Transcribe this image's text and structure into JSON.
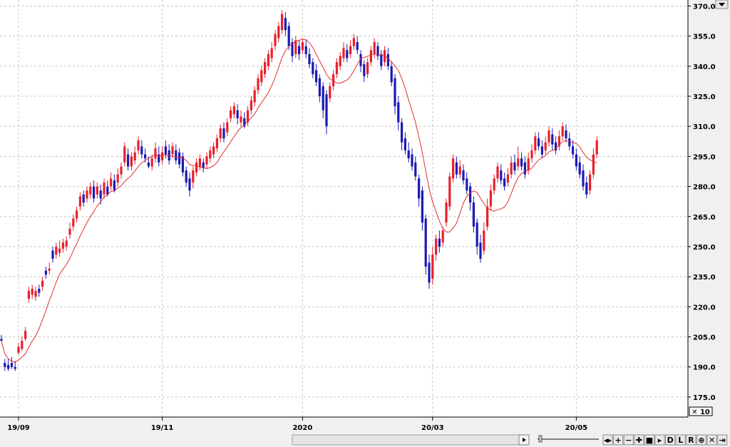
{
  "chart_data": {
    "type": "candlestick",
    "scale_label": "✕ 10",
    "y_ticks": [
      175.0,
      190.0,
      205.0,
      220.0,
      235.0,
      250.0,
      265.0,
      280.0,
      295.0,
      310.0,
      325.0,
      340.0,
      355.0,
      370.0
    ],
    "y_tick_labels": [
      "175.0",
      "190.0",
      "205.0",
      "220.0",
      "235.0",
      "250.0",
      "265.0",
      "280.0",
      "295.0",
      "310.0",
      "325.0",
      "340.0",
      "355.0",
      "370.0"
    ],
    "ylim": [
      165,
      373
    ],
    "x_labels": [
      {
        "label": "19/09",
        "index": 5
      },
      {
        "label": "19/11",
        "index": 47
      },
      {
        "label": "2020",
        "index": 88
      },
      {
        "label": "20/03",
        "index": 126
      },
      {
        "label": "20/05",
        "index": 168
      }
    ],
    "x_count": 176,
    "colors": {
      "up": "#e8202a",
      "down": "#1a1ab4",
      "ma": "#e03030",
      "grid": "#c8c8c8"
    },
    "candles": [
      [
        204,
        203,
        206,
        203
      ],
      [
        192,
        190,
        194,
        188
      ],
      [
        191,
        189,
        194,
        188
      ],
      [
        192,
        190,
        195,
        189
      ],
      [
        190,
        189,
        193,
        188
      ],
      [
        197,
        200,
        202,
        196
      ],
      [
        199,
        203,
        205,
        198
      ],
      [
        204,
        208,
        210,
        203
      ],
      [
        224,
        228,
        230,
        222
      ],
      [
        226,
        229,
        231,
        224
      ],
      [
        225,
        228,
        230,
        223
      ],
      [
        229,
        227,
        231,
        225
      ],
      [
        230,
        233,
        235,
        228
      ],
      [
        238,
        236,
        240,
        234
      ],
      [
        238,
        239,
        242,
        236
      ],
      [
        248,
        244,
        250,
        242
      ],
      [
        246,
        250,
        252,
        244
      ],
      [
        247,
        249,
        253,
        245
      ],
      [
        249,
        252,
        254,
        247
      ],
      [
        250,
        253,
        255,
        248
      ],
      [
        256,
        259,
        262,
        254
      ],
      [
        260,
        264,
        266,
        258
      ],
      [
        264,
        268,
        270,
        262
      ],
      [
        270,
        275,
        277,
        268
      ],
      [
        276,
        272,
        278,
        270
      ],
      [
        274,
        278,
        280,
        272
      ],
      [
        276,
        280,
        282,
        274
      ],
      [
        280,
        274,
        283,
        272
      ],
      [
        276,
        280,
        282,
        274
      ],
      [
        278,
        274,
        281,
        271
      ],
      [
        276,
        282,
        284,
        274
      ],
      [
        280,
        276,
        283,
        275
      ],
      [
        280,
        284,
        287,
        278
      ],
      [
        283,
        278,
        286,
        277
      ],
      [
        282,
        286,
        289,
        280
      ],
      [
        286,
        290,
        292,
        284
      ],
      [
        292,
        300,
        302,
        290
      ],
      [
        296,
        290,
        299,
        288
      ],
      [
        290,
        295,
        297,
        288
      ],
      [
        293,
        297,
        300,
        291
      ],
      [
        298,
        303,
        305,
        296
      ],
      [
        300,
        296,
        303,
        294
      ],
      [
        296,
        294,
        299,
        292
      ],
      [
        292,
        290,
        295,
        289
      ],
      [
        290,
        294,
        296,
        288
      ],
      [
        294,
        299,
        302,
        292
      ],
      [
        296,
        292,
        300,
        290
      ],
      [
        293,
        297,
        300,
        291
      ],
      [
        300,
        296,
        303,
        294
      ],
      [
        298,
        293,
        301,
        291
      ],
      [
        296,
        300,
        302,
        294
      ],
      [
        298,
        293,
        301,
        291
      ],
      [
        297,
        291,
        299,
        289
      ],
      [
        295,
        287,
        297,
        285
      ],
      [
        288,
        282,
        290,
        280
      ],
      [
        284,
        278,
        287,
        275
      ],
      [
        282,
        288,
        290,
        279
      ],
      [
        287,
        292,
        294,
        285
      ],
      [
        290,
        294,
        296,
        288
      ],
      [
        292,
        289,
        294,
        287
      ],
      [
        291,
        295,
        297,
        289
      ],
      [
        294,
        298,
        300,
        292
      ],
      [
        296,
        300,
        302,
        294
      ],
      [
        299,
        304,
        306,
        297
      ],
      [
        304,
        309,
        311,
        302
      ],
      [
        309,
        304,
        312,
        302
      ],
      [
        307,
        312,
        314,
        305
      ],
      [
        314,
        318,
        320,
        312
      ],
      [
        316,
        320,
        322,
        314
      ],
      [
        318,
        314,
        321,
        311
      ],
      [
        312,
        315,
        318,
        310
      ],
      [
        314,
        310,
        317,
        309
      ],
      [
        312,
        318,
        320,
        310
      ],
      [
        318,
        323,
        325,
        316
      ],
      [
        322,
        328,
        330,
        320
      ],
      [
        328,
        334,
        336,
        326
      ],
      [
        332,
        338,
        340,
        330
      ],
      [
        336,
        342,
        344,
        334
      ],
      [
        340,
        346,
        348,
        338
      ],
      [
        344,
        349,
        352,
        342
      ],
      [
        350,
        356,
        358,
        348
      ],
      [
        354,
        360,
        362,
        352
      ],
      [
        358,
        366,
        368,
        356
      ],
      [
        364,
        358,
        367,
        355
      ],
      [
        360,
        350,
        362,
        348
      ],
      [
        352,
        345,
        354,
        342
      ],
      [
        346,
        353,
        355,
        344
      ],
      [
        350,
        346,
        353,
        343
      ],
      [
        348,
        352,
        354,
        346
      ],
      [
        350,
        346,
        353,
        344
      ],
      [
        346,
        341,
        349,
        339
      ],
      [
        342,
        336,
        344,
        334
      ],
      [
        338,
        332,
        341,
        330
      ],
      [
        334,
        325,
        336,
        322
      ],
      [
        330,
        318,
        332,
        314
      ],
      [
        326,
        310,
        328,
        306
      ],
      [
        324,
        330,
        332,
        322
      ],
      [
        330,
        336,
        338,
        328
      ],
      [
        336,
        342,
        344,
        334
      ],
      [
        340,
        345,
        347,
        338
      ],
      [
        344,
        349,
        352,
        342
      ],
      [
        348,
        344,
        351,
        342
      ],
      [
        346,
        350,
        353,
        344
      ],
      [
        350,
        354,
        356,
        348
      ],
      [
        352,
        348,
        355,
        346
      ],
      [
        346,
        340,
        348,
        337
      ],
      [
        341,
        335,
        343,
        332
      ],
      [
        336,
        342,
        344,
        334
      ],
      [
        342,
        348,
        350,
        340
      ],
      [
        346,
        352,
        354,
        344
      ],
      [
        350,
        345,
        352,
        343
      ],
      [
        346,
        340,
        348,
        338
      ],
      [
        342,
        348,
        350,
        340
      ],
      [
        346,
        340,
        349,
        338
      ],
      [
        340,
        332,
        342,
        330
      ],
      [
        334,
        320,
        336,
        316
      ],
      [
        322,
        312,
        325,
        308
      ],
      [
        312,
        302,
        314,
        298
      ],
      [
        304,
        298,
        307,
        296
      ],
      [
        298,
        294,
        302,
        292
      ],
      [
        296,
        290,
        299,
        288
      ],
      [
        292,
        285,
        295,
        283
      ],
      [
        284,
        274,
        286,
        270
      ],
      [
        278,
        262,
        280,
        258
      ],
      [
        264,
        240,
        266,
        236
      ],
      [
        242,
        232,
        246,
        229
      ],
      [
        234,
        246,
        250,
        231
      ],
      [
        246,
        254,
        256,
        243
      ],
      [
        254,
        250,
        258,
        247
      ],
      [
        252,
        258,
        260,
        250
      ],
      [
        262,
        272,
        274,
        260
      ],
      [
        270,
        285,
        287,
        268
      ],
      [
        284,
        294,
        296,
        282
      ],
      [
        292,
        286,
        295,
        284
      ],
      [
        286,
        290,
        293,
        284
      ],
      [
        288,
        283,
        291,
        281
      ],
      [
        284,
        278,
        287,
        276
      ],
      [
        280,
        272,
        282,
        268
      ],
      [
        272,
        260,
        275,
        257
      ],
      [
        262,
        250,
        264,
        246
      ],
      [
        252,
        244,
        256,
        242
      ],
      [
        248,
        258,
        262,
        246
      ],
      [
        260,
        270,
        274,
        258
      ],
      [
        270,
        278,
        281,
        268
      ],
      [
        278,
        284,
        286,
        276
      ],
      [
        284,
        290,
        292,
        282
      ],
      [
        288,
        283,
        291,
        281
      ],
      [
        284,
        280,
        287,
        278
      ],
      [
        282,
        286,
        289,
        280
      ],
      [
        286,
        292,
        295,
        284
      ],
      [
        292,
        288,
        296,
        286
      ],
      [
        290,
        294,
        300,
        288
      ],
      [
        294,
        290,
        297,
        288
      ],
      [
        292,
        286,
        295,
        284
      ],
      [
        288,
        294,
        297,
        286
      ],
      [
        294,
        298,
        301,
        292
      ],
      [
        298,
        305,
        307,
        296
      ],
      [
        304,
        300,
        307,
        298
      ],
      [
        300,
        296,
        303,
        294
      ],
      [
        298,
        302,
        305,
        296
      ],
      [
        302,
        308,
        310,
        300
      ],
      [
        306,
        301,
        309,
        298
      ],
      [
        302,
        298,
        305,
        296
      ],
      [
        300,
        305,
        308,
        298
      ],
      [
        305,
        310,
        312,
        303
      ],
      [
        308,
        304,
        311,
        302
      ],
      [
        304,
        300,
        307,
        298
      ],
      [
        300,
        296,
        303,
        294
      ],
      [
        296,
        290,
        299,
        288
      ],
      [
        292,
        286,
        295,
        284
      ],
      [
        288,
        280,
        291,
        278
      ],
      [
        282,
        276,
        285,
        274
      ],
      [
        278,
        286,
        288,
        276
      ],
      [
        286,
        296,
        299,
        284
      ],
      [
        296,
        303,
        305,
        294
      ]
    ]
  },
  "toolbar": {
    "buttons": [
      "◂▸",
      "+",
      "−",
      "✚",
      "■",
      "▸",
      "D",
      "L",
      "R",
      "⊕",
      "✕",
      "⇥"
    ]
  }
}
